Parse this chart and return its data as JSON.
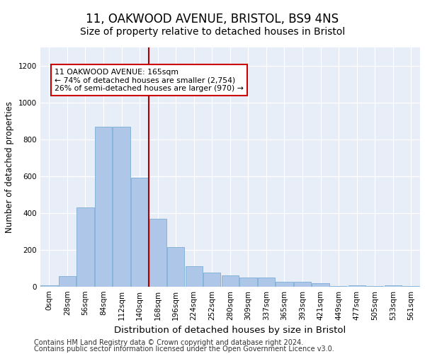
{
  "title": "11, OAKWOOD AVENUE, BRISTOL, BS9 4NS",
  "subtitle": "Size of property relative to detached houses in Bristol",
  "xlabel": "Distribution of detached houses by size in Bristol",
  "ylabel": "Number of detached properties",
  "categories": [
    "0sqm",
    "28sqm",
    "56sqm",
    "84sqm",
    "112sqm",
    "140sqm",
    "168sqm",
    "196sqm",
    "224sqm",
    "252sqm",
    "280sqm",
    "309sqm",
    "337sqm",
    "365sqm",
    "393sqm",
    "421sqm",
    "449sqm",
    "477sqm",
    "505sqm",
    "533sqm",
    "561sqm"
  ],
  "values": [
    5,
    55,
    430,
    870,
    870,
    590,
    370,
    215,
    110,
    75,
    60,
    50,
    50,
    25,
    25,
    20,
    3,
    6,
    1,
    5,
    1
  ],
  "bar_color": "#aec6e8",
  "bar_edgecolor": "#7aadd4",
  "vline_x_idx": 6,
  "vline_color": "#aa0000",
  "annotation_text": "11 OAKWOOD AVENUE: 165sqm\n← 74% of detached houses are smaller (2,754)\n26% of semi-detached houses are larger (970) →",
  "annotation_box_color": "#ffffff",
  "annotation_box_edgecolor": "#cc0000",
  "ylim": [
    0,
    1300
  ],
  "yticks": [
    0,
    200,
    400,
    600,
    800,
    1000,
    1200
  ],
  "background_color": "#e8eef7",
  "footer_line1": "Contains HM Land Registry data © Crown copyright and database right 2024.",
  "footer_line2": "Contains public sector information licensed under the Open Government Licence v3.0.",
  "title_fontsize": 12,
  "subtitle_fontsize": 10,
  "xlabel_fontsize": 9.5,
  "ylabel_fontsize": 8.5,
  "tick_fontsize": 7.5,
  "annotation_fontsize": 7.8,
  "footer_fontsize": 7
}
